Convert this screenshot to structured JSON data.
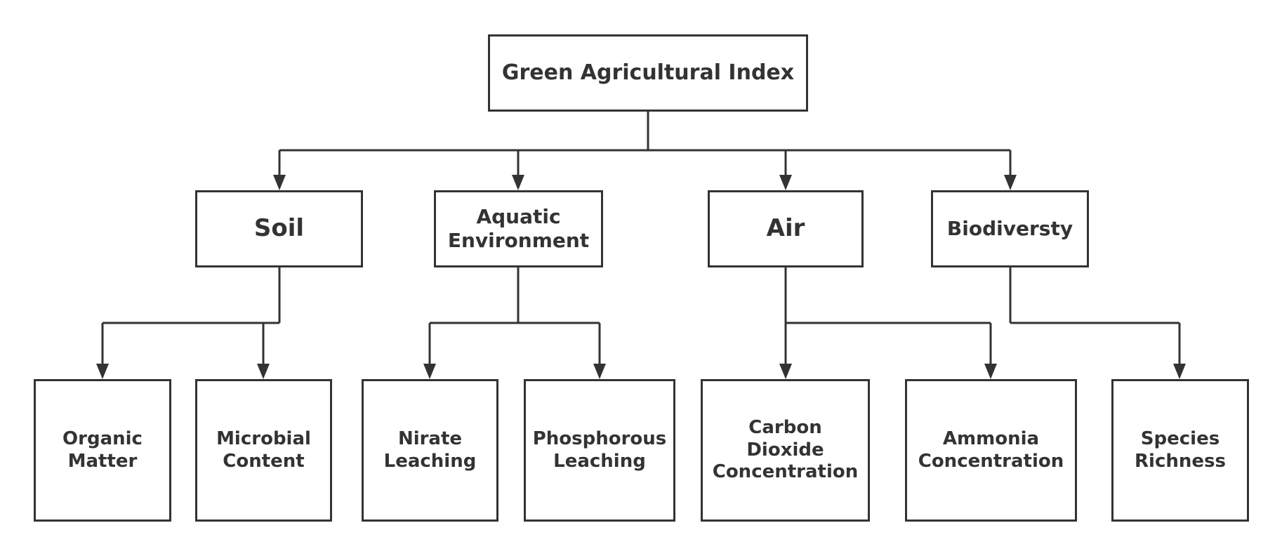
{
  "colors": {
    "stroke": "#333333",
    "background": "#ffffff"
  },
  "root": {
    "label": "Green Agricultural Index"
  },
  "categories": [
    {
      "label": "Soil",
      "children": [
        {
          "label": "Organic\nMatter"
        },
        {
          "label": "Microbial\nContent"
        }
      ]
    },
    {
      "label": "Aquatic\nEnvironment",
      "children": [
        {
          "label": "Nirate\nLeaching"
        },
        {
          "label": "Phosphorous\nLeaching"
        }
      ]
    },
    {
      "label": "Air",
      "children": [
        {
          "label": "Carbon\nDioxide\nConcentration"
        },
        {
          "label": "Ammonia\nConcentration"
        }
      ]
    },
    {
      "label": "Biodiversty",
      "children": [
        {
          "label": "Species\nRichness"
        }
      ]
    }
  ]
}
